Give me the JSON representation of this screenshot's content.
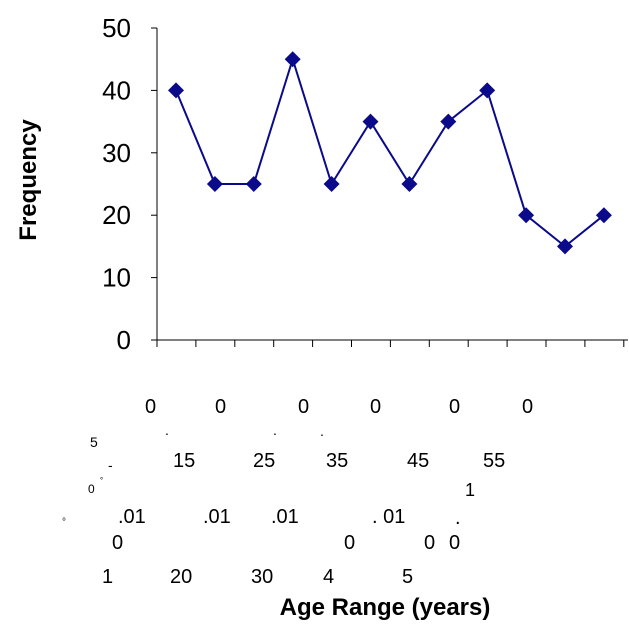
{
  "chart_data": {
    "type": "line",
    "ylabel": "Frequency",
    "xlabel": "Age Range (years)",
    "ylim": [
      0,
      50
    ],
    "yticks": [
      "0",
      "10",
      "20",
      "30",
      "40",
      "50"
    ],
    "grid": false,
    "legend": "none",
    "series": [
      {
        "color": "#0a0a8a",
        "marker": "diamond",
        "values": [
          40,
          25,
          25,
          45,
          25,
          35,
          25,
          35,
          40,
          20,
          15,
          20
        ]
      }
    ],
    "x_tick_fragments": [
      "0",
      "0",
      "0",
      "0",
      "0",
      "0",
      ".",
      ".",
      ".",
      "5",
      "-",
      "15",
      "25",
      "35",
      "45",
      "55",
      "0",
      "°",
      "1",
      ".01",
      ".01",
      ".01",
      ". 01",
      ".",
      "°",
      "0",
      "0",
      "0",
      "0",
      "1",
      "20",
      "30",
      "4",
      "5"
    ]
  }
}
